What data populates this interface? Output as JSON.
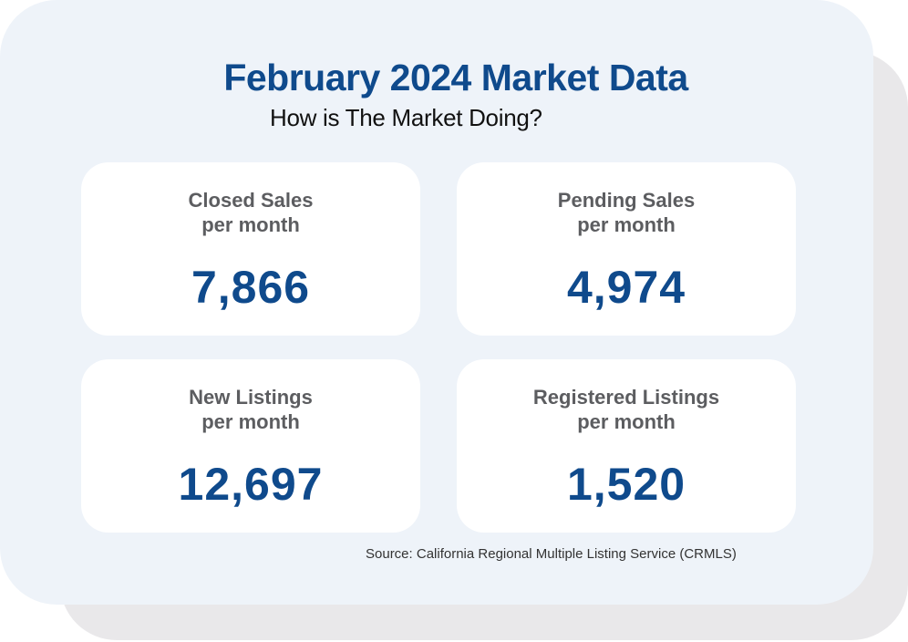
{
  "header": {
    "title": "February 2024 Market Data",
    "subtitle": "How is The Market Doing?"
  },
  "stats": [
    {
      "label_line1": "Closed Sales",
      "label_line2": "per month",
      "value": "7,866"
    },
    {
      "label_line1": "Pending Sales",
      "label_line2": "per month",
      "value": "4,974"
    },
    {
      "label_line1": "New Listings",
      "label_line2": "per month",
      "value": "12,697"
    },
    {
      "label_line1": "Registered Listings",
      "label_line2": "per month",
      "value": "1,520"
    }
  ],
  "footer": {
    "source": "Source: California Regional Multiple Listing Service (CRMLS)"
  },
  "colors": {
    "accent": "#0f4a8c",
    "card_background": "#eef3f9",
    "shadow": "#e9e8ea",
    "label": "#5c5d60"
  }
}
